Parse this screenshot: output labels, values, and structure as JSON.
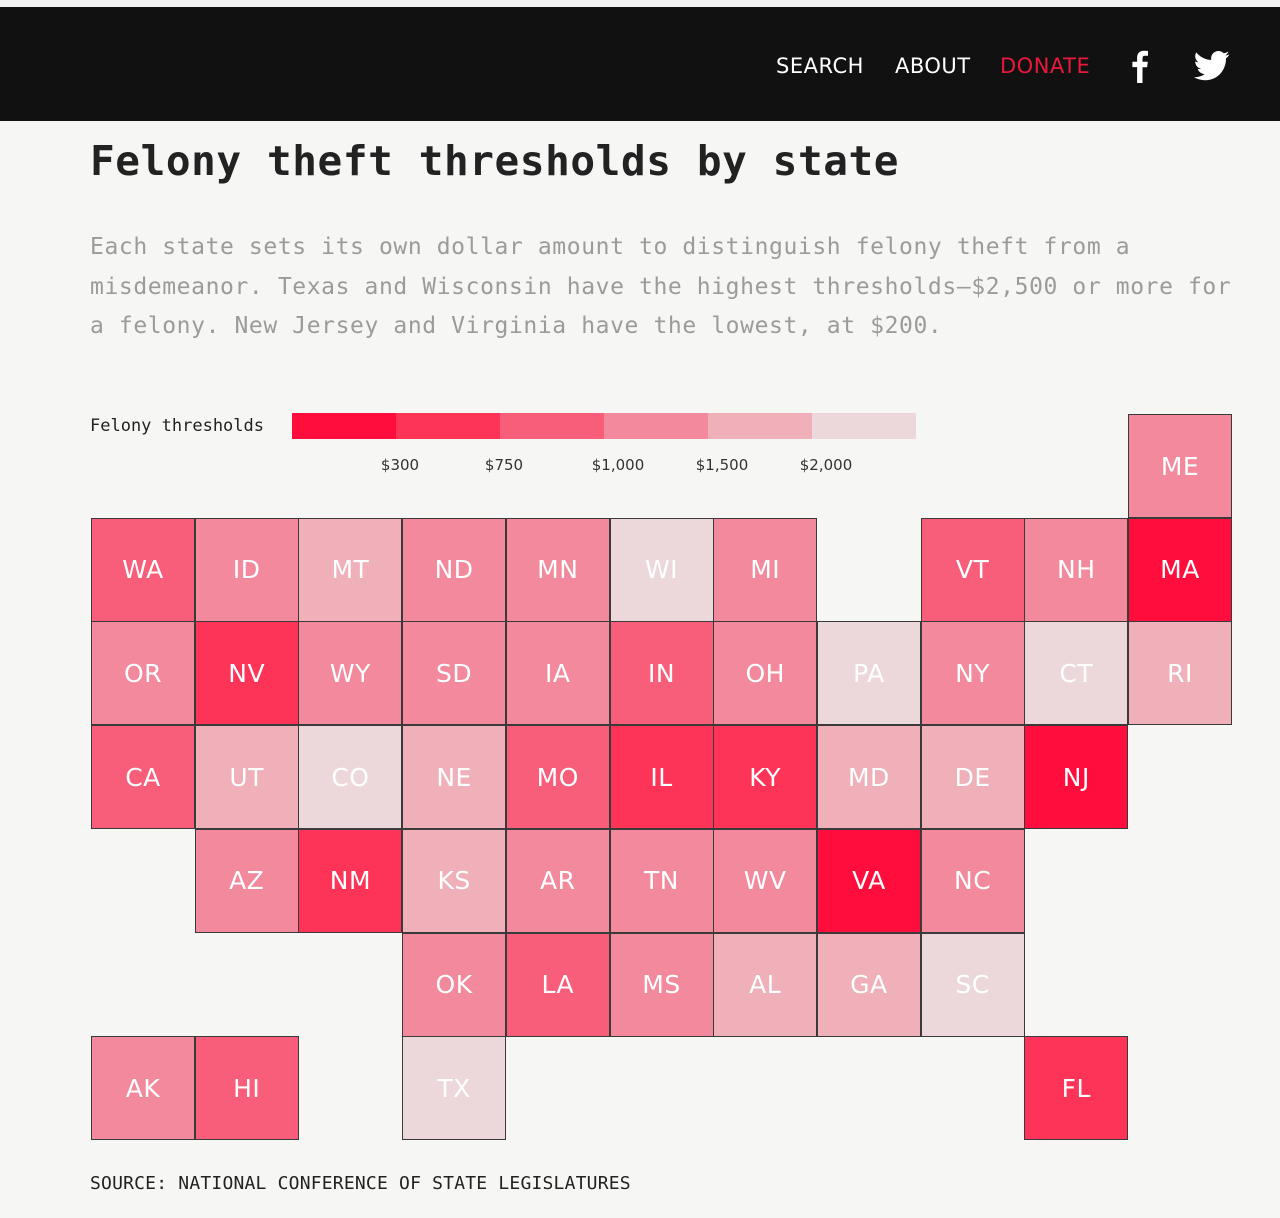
{
  "nav": {
    "search": "SEARCH",
    "about": "ABOUT",
    "donate": "DONATE",
    "donate_color": "#e8193c",
    "icons": [
      "facebook-icon",
      "twitter-icon"
    ]
  },
  "title": "Felony theft thresholds by state",
  "description": "Each state sets its own dollar amount to distinguish felony theft from a misdemeanor. Texas and Wisconsin have the highest thresholds—$2,500 or more for a felony. New Jersey and Virginia have the lowest, at $200.",
  "legend": {
    "title": "Felony thresholds",
    "colors": [
      "#ff0d3c",
      "#fd3457",
      "#f85d79",
      "#f3899c",
      "#f0b0ba",
      "#ecd8db"
    ],
    "ticks": [
      "$300",
      "$750",
      "$1,000",
      "$1,500",
      "$2,000"
    ]
  },
  "chart_data": {
    "type": "heatmap",
    "title": "Felony theft thresholds by state",
    "bins": [
      {
        "label": "under $300",
        "color": "#ff0d3c"
      },
      {
        "label": "$300–$750",
        "color": "#fd3457"
      },
      {
        "label": "$750–$1,000",
        "color": "#f85d79"
      },
      {
        "label": "$1,000–$1,500",
        "color": "#f3899c"
      },
      {
        "label": "$1,500–$2,000",
        "color": "#f0b0ba"
      },
      {
        "label": "$2,000 and above",
        "color": "#ecd8db"
      }
    ],
    "tiles": [
      {
        "state": "ME",
        "row": 0,
        "col": 10,
        "bin": 3
      },
      {
        "state": "WA",
        "row": 1,
        "col": 0,
        "bin": 2
      },
      {
        "state": "ID",
        "row": 1,
        "col": 1,
        "bin": 3
      },
      {
        "state": "MT",
        "row": 1,
        "col": 2,
        "bin": 4
      },
      {
        "state": "ND",
        "row": 1,
        "col": 3,
        "bin": 3
      },
      {
        "state": "MN",
        "row": 1,
        "col": 4,
        "bin": 3
      },
      {
        "state": "WI",
        "row": 1,
        "col": 5,
        "bin": 5
      },
      {
        "state": "MI",
        "row": 1,
        "col": 6,
        "bin": 3
      },
      {
        "state": "VT",
        "row": 1,
        "col": 8,
        "bin": 2
      },
      {
        "state": "NH",
        "row": 1,
        "col": 9,
        "bin": 3
      },
      {
        "state": "MA",
        "row": 1,
        "col": 10,
        "bin": 0
      },
      {
        "state": "OR",
        "row": 2,
        "col": 0,
        "bin": 3
      },
      {
        "state": "NV",
        "row": 2,
        "col": 1,
        "bin": 1
      },
      {
        "state": "WY",
        "row": 2,
        "col": 2,
        "bin": 3
      },
      {
        "state": "SD",
        "row": 2,
        "col": 3,
        "bin": 3
      },
      {
        "state": "IA",
        "row": 2,
        "col": 4,
        "bin": 3
      },
      {
        "state": "IN",
        "row": 2,
        "col": 5,
        "bin": 2
      },
      {
        "state": "OH",
        "row": 2,
        "col": 6,
        "bin": 3
      },
      {
        "state": "PA",
        "row": 2,
        "col": 7,
        "bin": 5
      },
      {
        "state": "NY",
        "row": 2,
        "col": 8,
        "bin": 3
      },
      {
        "state": "CT",
        "row": 2,
        "col": 9,
        "bin": 5
      },
      {
        "state": "RI",
        "row": 2,
        "col": 10,
        "bin": 4
      },
      {
        "state": "CA",
        "row": 3,
        "col": 0,
        "bin": 2
      },
      {
        "state": "UT",
        "row": 3,
        "col": 1,
        "bin": 4
      },
      {
        "state": "CO",
        "row": 3,
        "col": 2,
        "bin": 5
      },
      {
        "state": "NE",
        "row": 3,
        "col": 3,
        "bin": 4
      },
      {
        "state": "MO",
        "row": 3,
        "col": 4,
        "bin": 2
      },
      {
        "state": "IL",
        "row": 3,
        "col": 5,
        "bin": 1
      },
      {
        "state": "KY",
        "row": 3,
        "col": 6,
        "bin": 1
      },
      {
        "state": "MD",
        "row": 3,
        "col": 7,
        "bin": 4
      },
      {
        "state": "DE",
        "row": 3,
        "col": 8,
        "bin": 4
      },
      {
        "state": "NJ",
        "row": 3,
        "col": 9,
        "bin": 0
      },
      {
        "state": "AZ",
        "row": 4,
        "col": 1,
        "bin": 3
      },
      {
        "state": "NM",
        "row": 4,
        "col": 2,
        "bin": 1
      },
      {
        "state": "KS",
        "row": 4,
        "col": 3,
        "bin": 4
      },
      {
        "state": "AR",
        "row": 4,
        "col": 4,
        "bin": 3
      },
      {
        "state": "TN",
        "row": 4,
        "col": 5,
        "bin": 3
      },
      {
        "state": "WV",
        "row": 4,
        "col": 6,
        "bin": 3
      },
      {
        "state": "VA",
        "row": 4,
        "col": 7,
        "bin": 0
      },
      {
        "state": "NC",
        "row": 4,
        "col": 8,
        "bin": 3
      },
      {
        "state": "OK",
        "row": 5,
        "col": 3,
        "bin": 3
      },
      {
        "state": "LA",
        "row": 5,
        "col": 4,
        "bin": 2
      },
      {
        "state": "MS",
        "row": 5,
        "col": 5,
        "bin": 3
      },
      {
        "state": "AL",
        "row": 5,
        "col": 6,
        "bin": 4
      },
      {
        "state": "GA",
        "row": 5,
        "col": 7,
        "bin": 4
      },
      {
        "state": "SC",
        "row": 5,
        "col": 8,
        "bin": 5
      },
      {
        "state": "AK",
        "row": 6,
        "col": 0,
        "bin": 3
      },
      {
        "state": "HI",
        "row": 6,
        "col": 1,
        "bin": 2
      },
      {
        "state": "TX",
        "row": 6,
        "col": 3,
        "bin": 5
      },
      {
        "state": "FL",
        "row": 6,
        "col": 9,
        "bin": 1
      }
    ]
  },
  "source": "SOURCE: NATIONAL CONFERENCE OF STATE LEGISLATURES"
}
